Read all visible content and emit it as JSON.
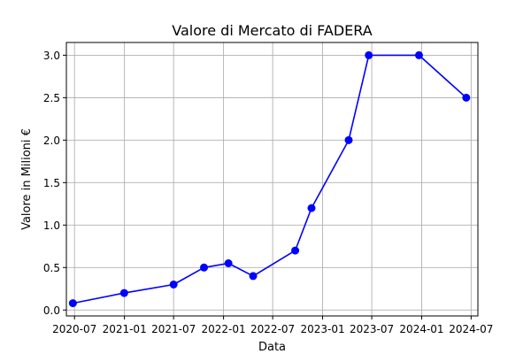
{
  "chart_data": {
    "type": "line",
    "title": "Valore di Mercato di FADERA",
    "xlabel": "Data",
    "ylabel": "Valore in Milioni €",
    "x_tick_labels": [
      "2020-07",
      "2021-01",
      "2021-07",
      "2022-01",
      "2022-07",
      "2023-01",
      "2023-07",
      "2024-01",
      "2024-07"
    ],
    "x_tick_dates": [
      "2020-07-01",
      "2021-01-01",
      "2021-07-01",
      "2022-01-01",
      "2022-07-01",
      "2023-01-01",
      "2023-07-01",
      "2024-01-01",
      "2024-07-01"
    ],
    "y_tick_labels": [
      "0.0",
      "0.5",
      "1.0",
      "1.5",
      "2.0",
      "2.5",
      "3.0"
    ],
    "y_ticks": [
      0.0,
      0.5,
      1.0,
      1.5,
      2.0,
      2.5,
      3.0
    ],
    "xlim": [
      "2020-06-01",
      "2024-07-26"
    ],
    "ylim": [
      -0.07,
      3.15
    ],
    "grid": true,
    "series": [
      {
        "color": "#0000ff",
        "marker": "circle",
        "points": [
          {
            "x": "2020-06-25",
            "y": 0.08
          },
          {
            "x": "2020-12-31",
            "y": 0.2
          },
          {
            "x": "2021-07-01",
            "y": 0.3
          },
          {
            "x": "2021-10-21",
            "y": 0.5
          },
          {
            "x": "2022-01-19",
            "y": 0.55
          },
          {
            "x": "2022-04-20",
            "y": 0.4
          },
          {
            "x": "2022-09-22",
            "y": 0.7
          },
          {
            "x": "2022-11-21",
            "y": 1.2
          },
          {
            "x": "2023-04-07",
            "y": 2.0
          },
          {
            "x": "2023-06-20",
            "y": 3.0
          },
          {
            "x": "2023-12-22",
            "y": 3.0
          },
          {
            "x": "2024-06-13",
            "y": 2.5
          }
        ]
      }
    ]
  }
}
